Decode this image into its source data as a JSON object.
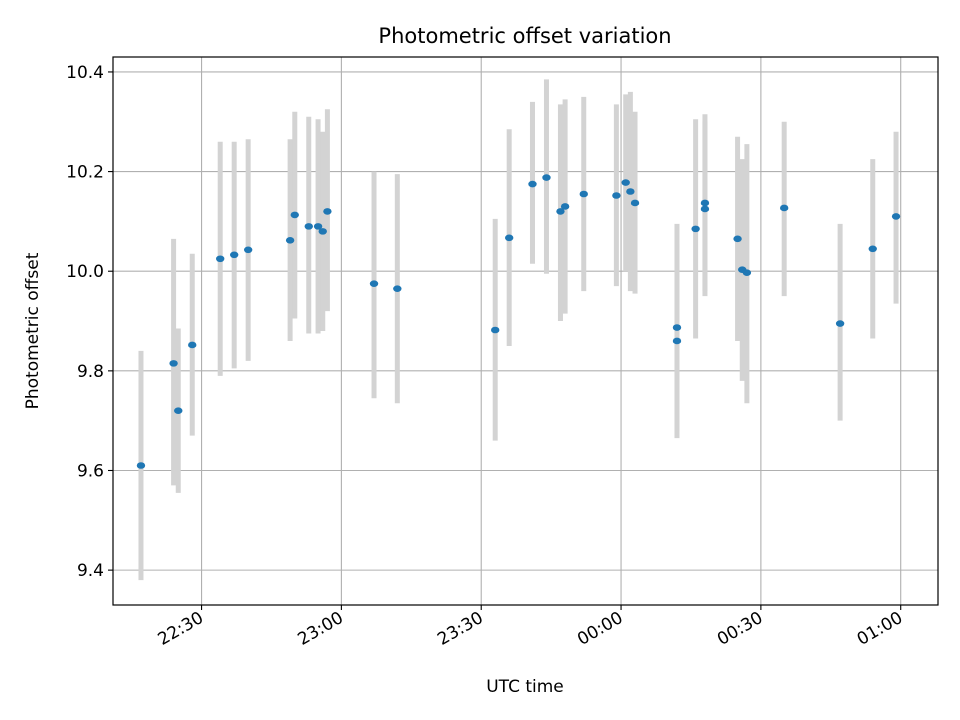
{
  "chart_data": {
    "type": "scatter",
    "title": "Photometric offset variation",
    "xlabel": "UTC time",
    "ylabel": "Photometric offset",
    "x_unit": "time of day (UTC, HH:MM)",
    "xlim": [
      "22:11",
      "01:08"
    ],
    "ylim": [
      9.33,
      10.43
    ],
    "x_ticks": [
      "22:30",
      "23:00",
      "23:30",
      "00:00",
      "00:30",
      "01:00"
    ],
    "y_ticks": [
      "9.4",
      "9.6",
      "9.8",
      "10.0",
      "10.2",
      "10.4"
    ],
    "grid": true,
    "colors": {
      "marker": "#1f77b4",
      "errorbar": "#d3d3d3",
      "grid": "#b0b0b0"
    },
    "points": [
      {
        "x": "22:17",
        "y": 9.61,
        "ylow": 9.38,
        "yhigh": 9.84
      },
      {
        "x": "22:24",
        "y": 9.815,
        "ylow": 9.57,
        "yhigh": 10.065
      },
      {
        "x": "22:25",
        "y": 9.72,
        "ylow": 9.555,
        "yhigh": 9.885
      },
      {
        "x": "22:28",
        "y": 9.852,
        "ylow": 9.67,
        "yhigh": 10.035
      },
      {
        "x": "22:34",
        "y": 10.025,
        "ylow": 9.79,
        "yhigh": 10.26
      },
      {
        "x": "22:37",
        "y": 10.033,
        "ylow": 9.805,
        "yhigh": 10.26
      },
      {
        "x": "22:40",
        "y": 10.043,
        "ylow": 9.82,
        "yhigh": 10.265
      },
      {
        "x": "22:49",
        "y": 10.062,
        "ylow": 9.86,
        "yhigh": 10.265
      },
      {
        "x": "22:50",
        "y": 10.113,
        "ylow": 9.905,
        "yhigh": 10.32
      },
      {
        "x": "22:53",
        "y": 10.09,
        "ylow": 9.875,
        "yhigh": 10.31
      },
      {
        "x": "22:55",
        "y": 10.09,
        "ylow": 9.875,
        "yhigh": 10.305
      },
      {
        "x": "22:56",
        "y": 10.08,
        "ylow": 9.88,
        "yhigh": 10.28
      },
      {
        "x": "22:57",
        "y": 10.12,
        "ylow": 9.92,
        "yhigh": 10.325
      },
      {
        "x": "23:07",
        "y": 9.975,
        "ylow": 9.745,
        "yhigh": 10.2
      },
      {
        "x": "23:12",
        "y": 9.965,
        "ylow": 9.735,
        "yhigh": 10.195
      },
      {
        "x": "23:33",
        "y": 9.882,
        "ylow": 9.66,
        "yhigh": 10.105
      },
      {
        "x": "23:36",
        "y": 10.067,
        "ylow": 9.85,
        "yhigh": 10.285
      },
      {
        "x": "23:41",
        "y": 10.175,
        "ylow": 10.015,
        "yhigh": 10.34
      },
      {
        "x": "23:44",
        "y": 10.188,
        "ylow": 9.995,
        "yhigh": 10.385
      },
      {
        "x": "23:47",
        "y": 10.12,
        "ylow": 9.9,
        "yhigh": 10.335
      },
      {
        "x": "23:48",
        "y": 10.13,
        "ylow": 9.915,
        "yhigh": 10.345
      },
      {
        "x": "23:52",
        "y": 10.155,
        "ylow": 9.96,
        "yhigh": 10.35
      },
      {
        "x": "23:59",
        "y": 10.152,
        "ylow": 9.97,
        "yhigh": 10.335
      },
      {
        "x": "00:01",
        "y": 10.178,
        "ylow": 10.0,
        "yhigh": 10.355
      },
      {
        "x": "00:02",
        "y": 10.16,
        "ylow": 9.96,
        "yhigh": 10.36
      },
      {
        "x": "00:03",
        "y": 10.137,
        "ylow": 9.955,
        "yhigh": 10.32
      },
      {
        "x": "00:12",
        "y": 9.86,
        "ylow": 9.665,
        "yhigh": 10.055
      },
      {
        "x": "00:12",
        "y": 9.887,
        "ylow": 9.68,
        "yhigh": 10.095
      },
      {
        "x": "00:16",
        "y": 10.085,
        "ylow": 9.865,
        "yhigh": 10.305
      },
      {
        "x": "00:18",
        "y": 10.125,
        "ylow": 9.95,
        "yhigh": 10.3
      },
      {
        "x": "00:18",
        "y": 10.137,
        "ylow": 9.96,
        "yhigh": 10.315
      },
      {
        "x": "00:25",
        "y": 10.065,
        "ylow": 9.86,
        "yhigh": 10.27
      },
      {
        "x": "00:26",
        "y": 10.003,
        "ylow": 9.78,
        "yhigh": 10.225
      },
      {
        "x": "00:27",
        "y": 9.997,
        "ylow": 9.735,
        "yhigh": 10.255
      },
      {
        "x": "00:35",
        "y": 10.127,
        "ylow": 9.95,
        "yhigh": 10.3
      },
      {
        "x": "00:47",
        "y": 9.895,
        "ylow": 9.7,
        "yhigh": 10.095
      },
      {
        "x": "00:54",
        "y": 10.045,
        "ylow": 9.865,
        "yhigh": 10.225
      },
      {
        "x": "00:59",
        "y": 10.11,
        "ylow": 9.935,
        "yhigh": 10.28
      }
    ]
  }
}
